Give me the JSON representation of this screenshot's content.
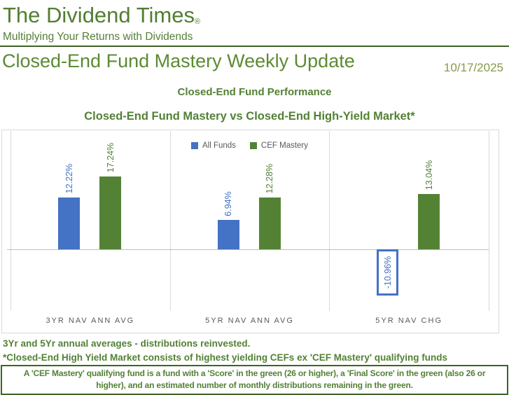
{
  "header": {
    "brand": "The Dividend Times",
    "registered_mark": "®",
    "tagline": "Multiplying Your Returns with Dividends",
    "title": "Closed-End Fund Mastery Weekly Update",
    "date": "10/17/2025"
  },
  "section": {
    "heading": "Closed-End Fund Performance"
  },
  "chart_data": {
    "type": "bar",
    "title": "Closed-End Fund Mastery vs Closed-End High-Yield Market*",
    "categories": [
      "3YR NAV ANN AVG",
      "5YR NAV ANN AVG",
      "5YR NAV CHG"
    ],
    "series": [
      {
        "name": "All Funds",
        "color": "#4472C4",
        "values": [
          12.22,
          6.94,
          -10.96
        ],
        "labels": [
          "12.22%",
          "6.94%",
          "-10.96%"
        ]
      },
      {
        "name": "CEF Mastery",
        "color": "#548235",
        "values": [
          17.24,
          12.28,
          13.04
        ],
        "labels": [
          "17.24%",
          "12.28%",
          "13.04%"
        ]
      }
    ],
    "value_format": "percent",
    "legend_position": "top-center",
    "gridlines": "vertical category separators, zero axis line",
    "negative_bar_style": "white fill with thick series-color outline, label inside",
    "ylim": [
      -14.5,
      28
    ]
  },
  "footnotes": {
    "note1": "3Yr and 5Yr annual averages - distributions reinvested.",
    "note2": "*Closed-End High Yield Market consists of highest yielding CEFs ex 'CEF Mastery' qualifying funds",
    "boxed_note": "A 'CEF Mastery' qualifying fund is a fund with a 'Score' in the green (26 or higher), a 'Final Score' in the green (also 26 or higher), and an estimated number of monthly distributions remaining in the green."
  },
  "colors": {
    "accent_blue": "#4472C4",
    "accent_green": "#548235",
    "text_green": "#538135",
    "dark_green_border": "#3E6324",
    "axis_gray": "#595959",
    "gridline_gray": "#D9D9D9",
    "date_olive": "#869A4A"
  }
}
